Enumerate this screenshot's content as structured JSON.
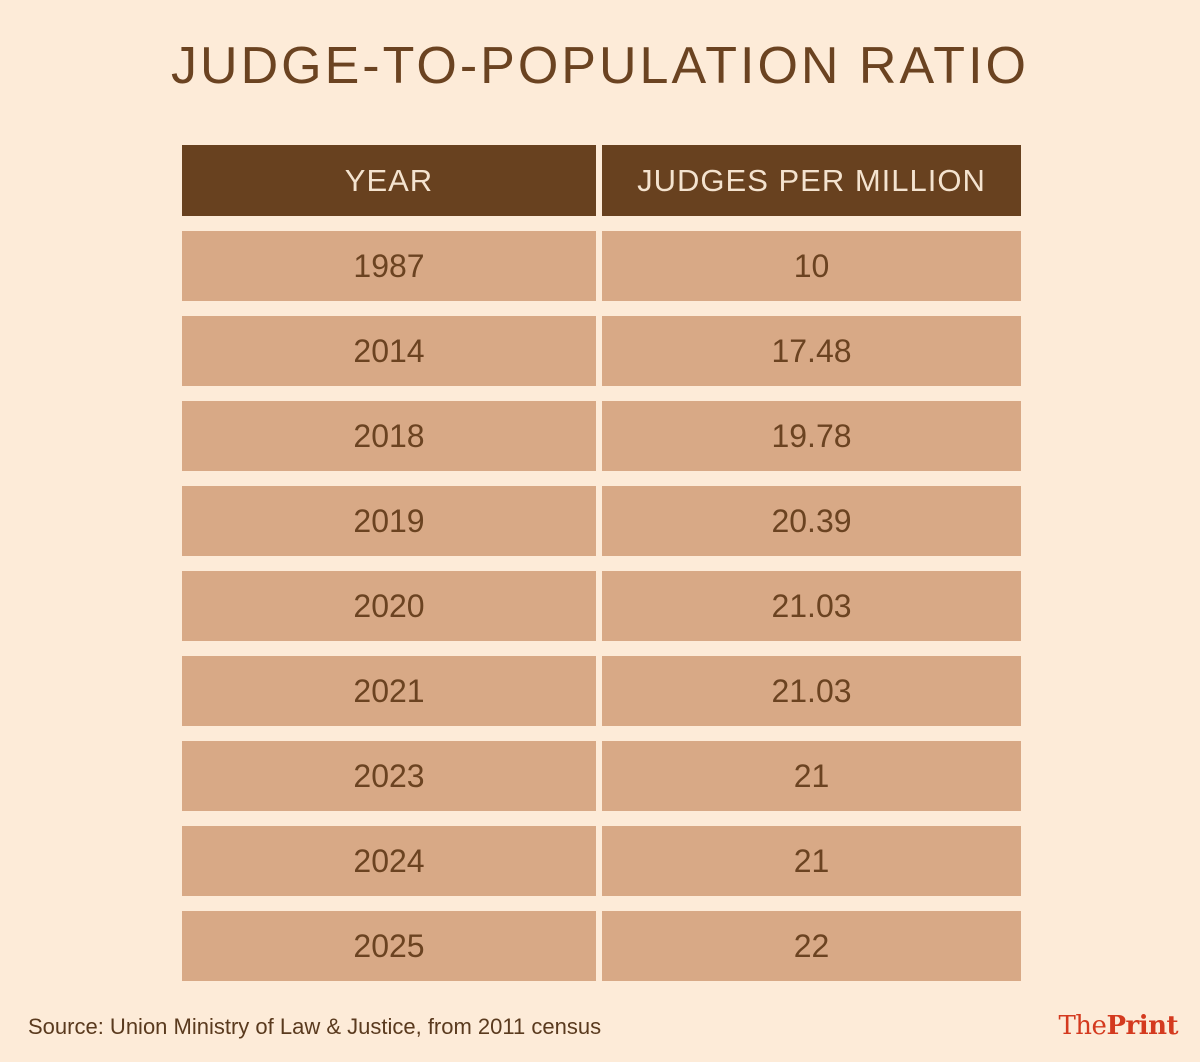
{
  "title": "JUDGE-TO-POPULATION RATIO",
  "source": "Source: Union Ministry of Law & Justice, from 2011 census",
  "logo": {
    "part1": "The",
    "part2": "Print"
  },
  "colors": {
    "background": "#fdebd8",
    "header": "#68411f",
    "row": "#d8a986",
    "text": "#6b4321",
    "logo": "#d43a1f"
  },
  "chart_data": {
    "type": "table",
    "title": "JUDGE-TO-POPULATION RATIO",
    "columns": [
      "YEAR",
      "JUDGES PER MILLION"
    ],
    "rows": [
      [
        "1987",
        "10"
      ],
      [
        "2014",
        "17.48"
      ],
      [
        "2018",
        "19.78"
      ],
      [
        "2019",
        "20.39"
      ],
      [
        "2020",
        "21.03"
      ],
      [
        "2021",
        "21.03"
      ],
      [
        "2023",
        "21"
      ],
      [
        "2024",
        "21"
      ],
      [
        "2025",
        "22"
      ]
    ]
  }
}
